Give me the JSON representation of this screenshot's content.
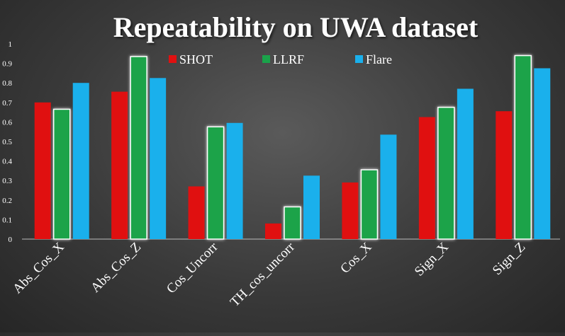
{
  "chart_data": {
    "type": "bar",
    "title": "Repeatability on UWA dataset",
    "categories": [
      "Abs_Cos_X",
      "Abs_Cos_Z",
      "Cos_Uncorr",
      "TH_cos_uncorr",
      "Cos_X",
      "Sign_X",
      "Sign_Z"
    ],
    "series": [
      {
        "name": "SHOT",
        "color": "#e01010",
        "values": [
          0.7,
          0.755,
          0.27,
          0.08,
          0.29,
          0.625,
          0.655
        ]
      },
      {
        "name": "LLRF",
        "color": "#1aa34a",
        "values": [
          0.665,
          0.935,
          0.575,
          0.165,
          0.355,
          0.675,
          0.94
        ]
      },
      {
        "name": "Flare",
        "color": "#1ab0ec",
        "values": [
          0.8,
          0.825,
          0.595,
          0.325,
          0.535,
          0.77,
          0.875
        ]
      }
    ],
    "ylim": [
      0,
      1
    ],
    "yticks": [
      "0",
      "0.1",
      "0.2",
      "0.3",
      "0.4",
      "0.5",
      "0.6",
      "0.7",
      "0.8",
      "0.9",
      "1"
    ],
    "xlabel": "",
    "ylabel": "",
    "grid": false,
    "legend_position": "top-center",
    "text_color": "#ffffff"
  }
}
